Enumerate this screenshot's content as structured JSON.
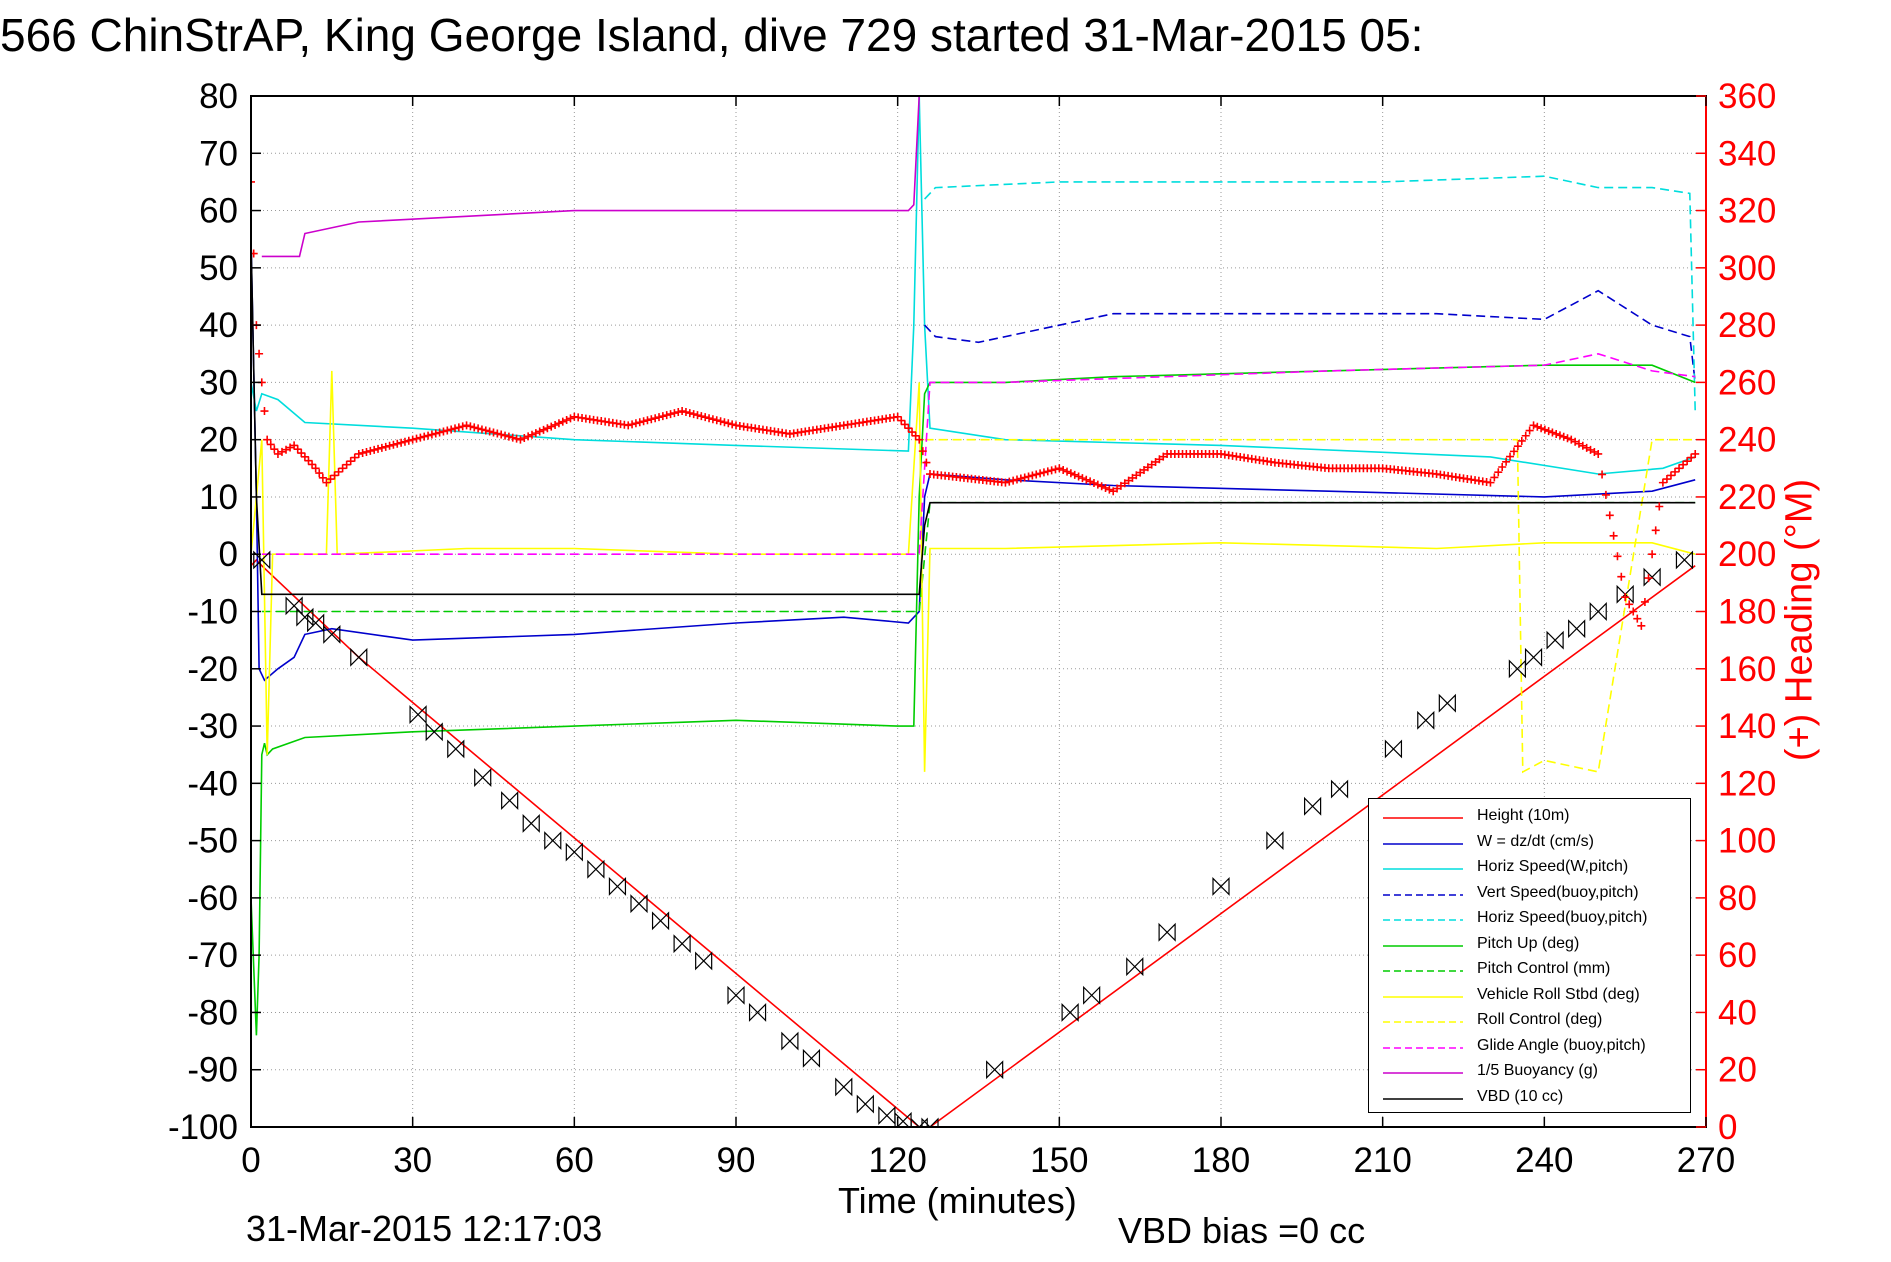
{
  "title": "566 ChinStrAP, King George Island, dive 729 started 31-Mar-2015 05:",
  "footer": {
    "date": "31-Mar-2015 12:17:03",
    "vbd_bias": "VBD bias =0 cc"
  },
  "chart_data": {
    "type": "line",
    "xlabel": "Time (minutes)",
    "ylabel": "",
    "y2label": "(+) Heading (°M)",
    "xlim": [
      0,
      270
    ],
    "ylim": [
      -100,
      80
    ],
    "y2lim": [
      0,
      360
    ],
    "x_ticks": [
      0,
      30,
      60,
      90,
      120,
      150,
      180,
      210,
      240,
      270
    ],
    "y_ticks": [
      -100,
      -90,
      -80,
      -70,
      -60,
      -50,
      -40,
      -30,
      -20,
      -10,
      0,
      10,
      20,
      30,
      40,
      50,
      60,
      70,
      80
    ],
    "y2_ticks": [
      0,
      20,
      40,
      60,
      80,
      100,
      120,
      140,
      160,
      180,
      200,
      220,
      240,
      260,
      280,
      300,
      320,
      340,
      360
    ],
    "grid": true,
    "legend_position": "lower-right",
    "legend": [
      {
        "label": "Height (10m)",
        "color": "#ff0000",
        "dash": "solid"
      },
      {
        "label": "W = dz/dt (cm/s)",
        "color": "#0000cc",
        "dash": "solid"
      },
      {
        "label": "Horiz Speed(W,pitch)",
        "color": "#00dddd",
        "dash": "solid"
      },
      {
        "label": "Vert Speed(buoy,pitch)",
        "color": "#0000cc",
        "dash": "dashed"
      },
      {
        "label": "Horiz Speed(buoy,pitch)",
        "color": "#00dddd",
        "dash": "dashed"
      },
      {
        "label": "Pitch Up (deg)",
        "color": "#00cc00",
        "dash": "solid"
      },
      {
        "label": "Pitch Control (mm)",
        "color": "#00cc00",
        "dash": "dashed"
      },
      {
        "label": "Vehicle Roll Stbd (deg)",
        "color": "#ffff00",
        "dash": "solid"
      },
      {
        "label": "Roll Control (deg)",
        "color": "#ffff00",
        "dash": "dashed"
      },
      {
        "label": "Glide Angle (buoy,pitch)",
        "color": "#ff00ff",
        "dash": "dashed"
      },
      {
        "label": "1/5 Buoyancy (g)",
        "color": "#cc00cc",
        "dash": "solid"
      },
      {
        "label": "VBD (10 cc)",
        "color": "#000000",
        "dash": "solid"
      }
    ],
    "series": [
      {
        "name": "Height (10m)",
        "color": "#ff0000",
        "dash": "solid",
        "x": [
          0,
          1,
          2,
          20,
          124,
          126,
          268
        ],
        "y": [
          -2,
          -1,
          -2,
          -18,
          -100,
          -100,
          -2
        ]
      },
      {
        "name": "W = dz/dt (cm/s)",
        "color": "#0000cc",
        "dash": "solid",
        "x": [
          0,
          1,
          1.5,
          2.5,
          5,
          8,
          10,
          15,
          30,
          60,
          90,
          110,
          122,
          124,
          125,
          126,
          140,
          160,
          200,
          240,
          260,
          268
        ],
        "y": [
          55,
          10,
          -20,
          -22,
          -20,
          -18,
          -14,
          -13,
          -15,
          -14,
          -12,
          -11,
          -12,
          -10,
          10,
          14,
          13,
          12,
          11,
          10,
          11,
          13
        ]
      },
      {
        "name": "Horiz Speed(W,pitch)",
        "color": "#00dddd",
        "dash": "solid",
        "x": [
          0,
          1,
          2,
          5,
          10,
          30,
          60,
          90,
          122,
          123,
          124,
          125,
          126,
          140,
          180,
          230,
          250,
          262,
          268
        ],
        "y": [
          30,
          25,
          28,
          27,
          23,
          22,
          20,
          19,
          18,
          40,
          80,
          40,
          22,
          20,
          19,
          17,
          14,
          15,
          17
        ]
      },
      {
        "name": "Vert Speed(buoy,pitch)",
        "color": "#0000cc",
        "dash": "dashed",
        "x": [
          125,
          127,
          135,
          140,
          160,
          180,
          200,
          220,
          240,
          250,
          260,
          267,
          268
        ],
        "y": [
          40,
          38,
          37,
          38,
          42,
          42,
          42,
          42,
          41,
          46,
          40,
          38,
          30
        ]
      },
      {
        "name": "Horiz Speed(buoy,pitch)",
        "color": "#00dddd",
        "dash": "dashed",
        "x": [
          125,
          127,
          150,
          180,
          210,
          240,
          250,
          260,
          267,
          268
        ],
        "y": [
          62,
          64,
          65,
          65,
          65,
          66,
          64,
          64,
          63,
          25
        ]
      },
      {
        "name": "Pitch Up (deg)",
        "color": "#00cc00",
        "dash": "solid",
        "x": [
          0,
          1,
          1.5,
          2,
          2.5,
          3,
          4,
          10,
          30,
          60,
          90,
          120,
          123,
          124,
          125,
          126,
          140,
          160,
          200,
          240,
          260,
          268
        ],
        "y": [
          -60,
          -84,
          -70,
          -35,
          -33,
          -35,
          -34,
          -32,
          -31,
          -30,
          -29,
          -30,
          -30,
          10,
          28,
          30,
          30,
          31,
          32,
          33,
          33,
          30
        ]
      },
      {
        "name": "Pitch Control (mm)",
        "color": "#00cc00",
        "dash": "dashed",
        "x": [
          2,
          124,
          126,
          268
        ],
        "y": [
          -10,
          -10,
          9,
          9
        ]
      },
      {
        "name": "Vehicle Roll Stbd (deg)",
        "color": "#ffff00",
        "dash": "solid",
        "x": [
          0,
          2,
          3,
          4,
          14,
          15,
          16,
          40,
          60,
          90,
          122,
          124,
          125,
          126,
          140,
          180,
          220,
          240,
          260,
          268
        ],
        "y": [
          0,
          20,
          -35,
          0,
          0,
          32,
          0,
          1,
          1,
          0,
          0,
          30,
          -38,
          1,
          1,
          2,
          1,
          2,
          2,
          0
        ]
      },
      {
        "name": "Roll Control (deg)",
        "color": "#ffff00",
        "dash": "dashed",
        "x": [
          125,
          140,
          180,
          220,
          235,
          236,
          240,
          250,
          260,
          268
        ],
        "y": [
          20,
          20,
          20,
          20,
          20,
          -38,
          -36,
          -38,
          20,
          20
        ]
      },
      {
        "name": "Glide Angle (buoy,pitch)",
        "color": "#ff00ff",
        "dash": "dashed",
        "x": [
          2,
          124,
          126,
          140,
          200,
          240,
          250,
          260,
          268
        ],
        "y": [
          0,
          0,
          30,
          30,
          32,
          33,
          35,
          32,
          31
        ]
      },
      {
        "name": "1/5 Buoyancy (g)",
        "color": "#cc00cc",
        "dash": "solid",
        "x": [
          2,
          4,
          9,
          10,
          20,
          40,
          60,
          90,
          122,
          123,
          124
        ],
        "y": [
          52,
          52,
          52,
          56,
          58,
          59,
          60,
          60,
          60,
          61,
          80
        ]
      },
      {
        "name": "VBD (10 cc)",
        "color": "#000000",
        "dash": "solid",
        "x": [
          0,
          1,
          2,
          124,
          125,
          126,
          268
        ],
        "y": [
          55,
          10,
          -7,
          -7,
          5,
          9,
          9
        ]
      }
    ],
    "heading_series": {
      "name": "(+) Heading (°M)",
      "color": "#ff0000",
      "x": [
        0,
        1,
        2,
        3,
        5,
        8,
        12,
        14,
        20,
        30,
        40,
        50,
        60,
        70,
        80,
        90,
        100,
        110,
        120,
        124,
        126,
        140,
        150,
        160,
        170,
        180,
        190,
        200,
        210,
        220,
        230,
        238,
        245,
        250,
        255,
        258,
        262,
        268
      ],
      "y": [
        330,
        280,
        260,
        240,
        235,
        238,
        230,
        225,
        235,
        240,
        245,
        240,
        248,
        245,
        250,
        245,
        242,
        245,
        248,
        240,
        228,
        225,
        230,
        222,
        235,
        235,
        232,
        230,
        230,
        228,
        225,
        245,
        240,
        235,
        185,
        175,
        225,
        235
      ]
    },
    "markers": {
      "symbol": "bowtie",
      "x": [
        2,
        8,
        10,
        12,
        15,
        20,
        31,
        34,
        38,
        43,
        48,
        52,
        56,
        60,
        64,
        68,
        72,
        76,
        80,
        84,
        90,
        94,
        100,
        104,
        110,
        114,
        118,
        121,
        124,
        126,
        138,
        152,
        156,
        164,
        170,
        180,
        190,
        197,
        202,
        212,
        218,
        222,
        235,
        238,
        242,
        246,
        250,
        255,
        260,
        266
      ],
      "y": [
        -1,
        -9,
        -11,
        -12,
        -14,
        -18,
        -28,
        -31,
        -34,
        -39,
        -43,
        -47,
        -50,
        -52,
        -55,
        -58,
        -61,
        -64,
        -68,
        -71,
        -77,
        -80,
        -85,
        -88,
        -93,
        -96,
        -98,
        -99,
        -100,
        -100,
        -90,
        -80,
        -77,
        -72,
        -66,
        -58,
        -50,
        -44,
        -41,
        -34,
        -29,
        -26,
        -20,
        -18,
        -15,
        -13,
        -10,
        -7,
        -4,
        -1
      ]
    }
  }
}
